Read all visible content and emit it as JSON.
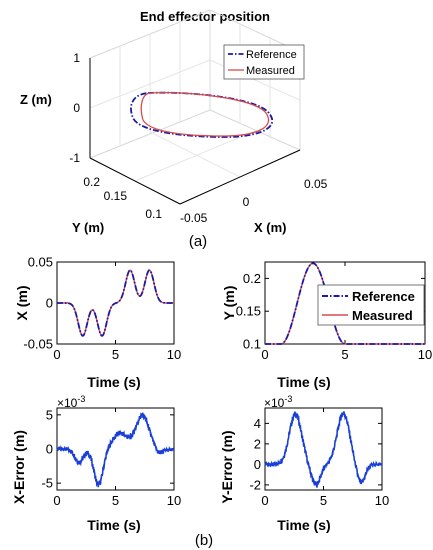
{
  "colors": {
    "reference": "#1a1aa8",
    "measured": "#d94b4b",
    "error": "#1a3fd6",
    "axis": "#000000",
    "grid3d": "#d8d8d8"
  },
  "panel_labels": {
    "a": "(a)",
    "b": "(b)"
  },
  "chart_data": [
    {
      "type": "line",
      "subtype": "3d",
      "title": "End effector position",
      "xlabel": "X (m)",
      "ylabel": "Y (m)",
      "zlabel": "Z (m)",
      "x_ticks": [
        "-0.05",
        "0",
        "0.05"
      ],
      "y_ticks": [
        "0.1",
        "0.15",
        "0.2"
      ],
      "z_ticks": [
        "-1",
        "0",
        "1"
      ],
      "legend": {
        "placement": "top-right",
        "entries": [
          "Reference",
          "Measured"
        ]
      },
      "series": [
        {
          "name": "Reference",
          "style": "dash-dot",
          "description_x_range": [
            -0.045,
            0.045
          ],
          "y_range": [
            0.09,
            0.22
          ],
          "z": 0
        },
        {
          "name": "Measured",
          "style": "solid",
          "description_x_range": [
            -0.045,
            0.045
          ],
          "y_range": [
            0.09,
            0.22
          ],
          "z": 0
        }
      ]
    },
    {
      "type": "line",
      "xlabel": "Time (s)",
      "ylabel": "X (m)",
      "xlim": [
        0,
        10
      ],
      "ylim": [
        -0.05,
        0.05
      ],
      "x_ticks": [
        "0",
        "5",
        "10"
      ],
      "y_ticks": [
        "-0.05",
        "0",
        "0.05"
      ],
      "series": [
        {
          "name": "Reference",
          "style": "dash-dot"
        },
        {
          "name": "Measured",
          "style": "solid"
        }
      ]
    },
    {
      "type": "line",
      "xlabel": "Time (s)",
      "ylabel": "Y (m)",
      "xlim": [
        0,
        10
      ],
      "ylim": [
        0.1,
        0.225
      ],
      "x_ticks": [
        "0",
        "5",
        "10"
      ],
      "y_ticks": [
        "0.1",
        "0.15",
        "0.2"
      ],
      "legend": {
        "placement": "top-right",
        "entries": [
          "Reference",
          "Measured"
        ]
      },
      "series": [
        {
          "name": "Reference",
          "style": "dash-dot"
        },
        {
          "name": "Measured",
          "style": "solid"
        }
      ]
    },
    {
      "type": "line",
      "xlabel": "Time (s)",
      "ylabel": "X-Error (m)",
      "exponent": "×10",
      "exponent_power": "-3",
      "xlim": [
        0,
        10
      ],
      "ylim": [
        -6,
        6
      ],
      "x_ticks": [
        "0",
        "5",
        "10"
      ],
      "y_ticks": [
        "-5",
        "0",
        "5"
      ]
    },
    {
      "type": "line",
      "xlabel": "Time (s)",
      "ylabel": "Y-Error (m)",
      "exponent": "×10",
      "exponent_power": "-3",
      "xlim": [
        0,
        10
      ],
      "ylim": [
        -2.5,
        5.5
      ],
      "x_ticks": [
        "0",
        "5",
        "10"
      ],
      "y_ticks": [
        "-2",
        "0",
        "2",
        "4"
      ]
    }
  ]
}
